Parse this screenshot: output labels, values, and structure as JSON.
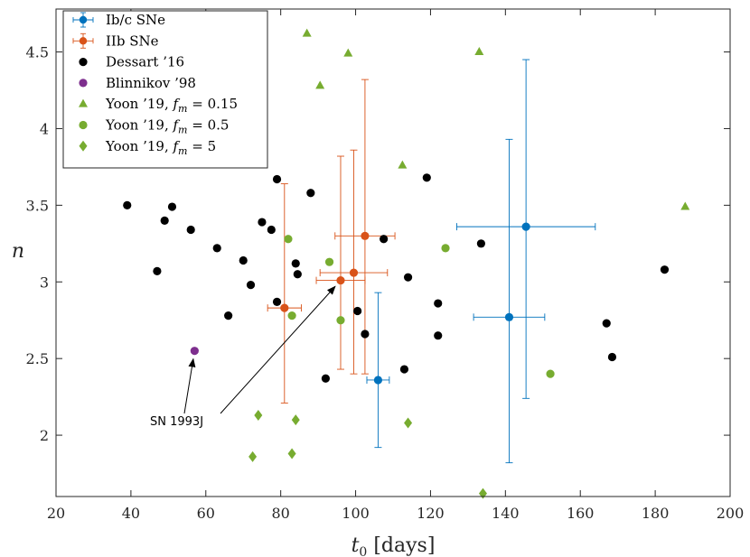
{
  "chart_data": {
    "type": "scatter",
    "xlabel": "t0 [days]",
    "xlabel_main": "t",
    "xlabel_sub": "0",
    "xlabel_unit": " [days]",
    "ylabel": "n",
    "xlim": [
      20,
      200
    ],
    "ylim": [
      1.6,
      4.78
    ],
    "xticks": [
      20,
      40,
      60,
      80,
      100,
      120,
      140,
      160,
      180,
      200
    ],
    "yticks": [
      2,
      2.5,
      3,
      3.5,
      4,
      4.5
    ],
    "ytick_labels": [
      "2",
      "2.5",
      "3",
      "3.5",
      "4",
      "4.5"
    ],
    "legend_position": "top-left",
    "colors": {
      "ibc": "#0072BD",
      "iib": "#D95319",
      "dessart": "#000000",
      "blinnikov": "#7E2F8E",
      "yoon": "#77AC30"
    },
    "series": [
      {
        "name": "Ib/c SNe",
        "marker": "circle-errorbar",
        "color": "#0072BD",
        "points": [
          {
            "x": 106,
            "y": 2.36,
            "xerr": 3,
            "yerr_low": 0.44,
            "yerr_high": 0.57
          },
          {
            "x": 141,
            "y": 2.77,
            "xerr": 9.5,
            "yerr_low": 0.95,
            "yerr_high": 1.16
          },
          {
            "x": 145.5,
            "y": 3.36,
            "xerr": 18.5,
            "yerr_low": 1.12,
            "yerr_high": 1.09
          }
        ]
      },
      {
        "name": "IIb SNe",
        "marker": "circle-errorbar",
        "color": "#D95319",
        "points": [
          {
            "x": 81,
            "y": 2.83,
            "xerr": 4.5,
            "yerr_low": 0.62,
            "yerr_high": 0.81
          },
          {
            "x": 96,
            "y": 3.01,
            "xerr": 6.5,
            "yerr_low": 0.58,
            "yerr_high": 0.81
          },
          {
            "x": 99.5,
            "y": 3.06,
            "xerr": 9,
            "yerr_low": 0.66,
            "yerr_high": 0.8
          },
          {
            "x": 102.5,
            "y": 3.3,
            "xerr": 8,
            "yerr_low": 0.9,
            "yerr_high": 1.02
          }
        ]
      },
      {
        "name": "Dessart '16",
        "marker": "circle",
        "color": "#000000",
        "points": [
          {
            "x": 39,
            "y": 3.5
          },
          {
            "x": 47,
            "y": 3.07
          },
          {
            "x": 49,
            "y": 3.4
          },
          {
            "x": 51,
            "y": 3.49
          },
          {
            "x": 56,
            "y": 3.34
          },
          {
            "x": 63,
            "y": 3.22
          },
          {
            "x": 66,
            "y": 2.78
          },
          {
            "x": 70,
            "y": 3.14
          },
          {
            "x": 72,
            "y": 2.98
          },
          {
            "x": 75,
            "y": 3.39
          },
          {
            "x": 77.5,
            "y": 3.34
          },
          {
            "x": 79,
            "y": 2.87
          },
          {
            "x": 79,
            "y": 3.67
          },
          {
            "x": 84,
            "y": 3.12
          },
          {
            "x": 84.5,
            "y": 3.05
          },
          {
            "x": 88,
            "y": 3.58
          },
          {
            "x": 92,
            "y": 2.37
          },
          {
            "x": 100.5,
            "y": 2.81
          },
          {
            "x": 102.5,
            "y": 2.66
          },
          {
            "x": 107.5,
            "y": 3.28
          },
          {
            "x": 113,
            "y": 2.43
          },
          {
            "x": 114,
            "y": 3.03
          },
          {
            "x": 119,
            "y": 3.68
          },
          {
            "x": 122,
            "y": 2.86
          },
          {
            "x": 122,
            "y": 2.65
          },
          {
            "x": 133.5,
            "y": 3.25
          },
          {
            "x": 167,
            "y": 2.73
          },
          {
            "x": 168.5,
            "y": 2.51
          },
          {
            "x": 182.5,
            "y": 3.08
          }
        ]
      },
      {
        "name": "Blinnikov '98",
        "marker": "circle",
        "color": "#7E2F8E",
        "points": [
          {
            "x": 57,
            "y": 2.55
          }
        ]
      },
      {
        "name": "Yoon '19, fm = 0.15",
        "marker": "triangle",
        "color": "#77AC30",
        "points": [
          {
            "x": 87,
            "y": 4.62
          },
          {
            "x": 90.5,
            "y": 4.28
          },
          {
            "x": 98,
            "y": 4.49
          },
          {
            "x": 112.5,
            "y": 3.76
          },
          {
            "x": 133,
            "y": 4.5
          },
          {
            "x": 188,
            "y": 3.49
          }
        ]
      },
      {
        "name": "Yoon '19, fm = 0.5",
        "marker": "circle",
        "color": "#77AC30",
        "points": [
          {
            "x": 82,
            "y": 3.28
          },
          {
            "x": 83,
            "y": 2.78
          },
          {
            "x": 93,
            "y": 3.13
          },
          {
            "x": 96,
            "y": 2.75
          },
          {
            "x": 124,
            "y": 3.22
          },
          {
            "x": 152,
            "y": 2.4
          }
        ]
      },
      {
        "name": "Yoon '19, fm = 5",
        "marker": "diamond",
        "color": "#77AC30",
        "points": [
          {
            "x": 72.5,
            "y": 1.86
          },
          {
            "x": 74,
            "y": 2.13
          },
          {
            "x": 83,
            "y": 1.88
          },
          {
            "x": 84,
            "y": 2.1
          },
          {
            "x": 114,
            "y": 2.08
          },
          {
            "x": 134,
            "y": 1.62
          }
        ]
      }
    ],
    "legend": [
      {
        "label": "Ib/c SNe",
        "prefix": "Ib/c SNe",
        "fm": ""
      },
      {
        "label": "IIb SNe",
        "prefix": "IIb SNe",
        "fm": ""
      },
      {
        "label": "Dessart '16",
        "prefix": "Dessart ’16",
        "fm": ""
      },
      {
        "label": "Blinnikov '98",
        "prefix": "Blinnikov ’98",
        "fm": ""
      },
      {
        "label": "Yoon '19, fm = 0.15",
        "prefix": "Yoon ’19, ",
        "fm": "0.15"
      },
      {
        "label": "Yoon '19, fm = 0.5",
        "prefix": "Yoon ’19, ",
        "fm": "0.5"
      },
      {
        "label": "Yoon '19, fm = 5",
        "prefix": "Yoon ’19, ",
        "fm": "5"
      }
    ],
    "annotation": {
      "text": "SN 1993J",
      "targets": [
        {
          "x": 57,
          "y": 2.55
        },
        {
          "x": 96,
          "y": 3.01
        }
      ],
      "anchor": {
        "x": 56,
        "y": 2.08
      }
    }
  }
}
